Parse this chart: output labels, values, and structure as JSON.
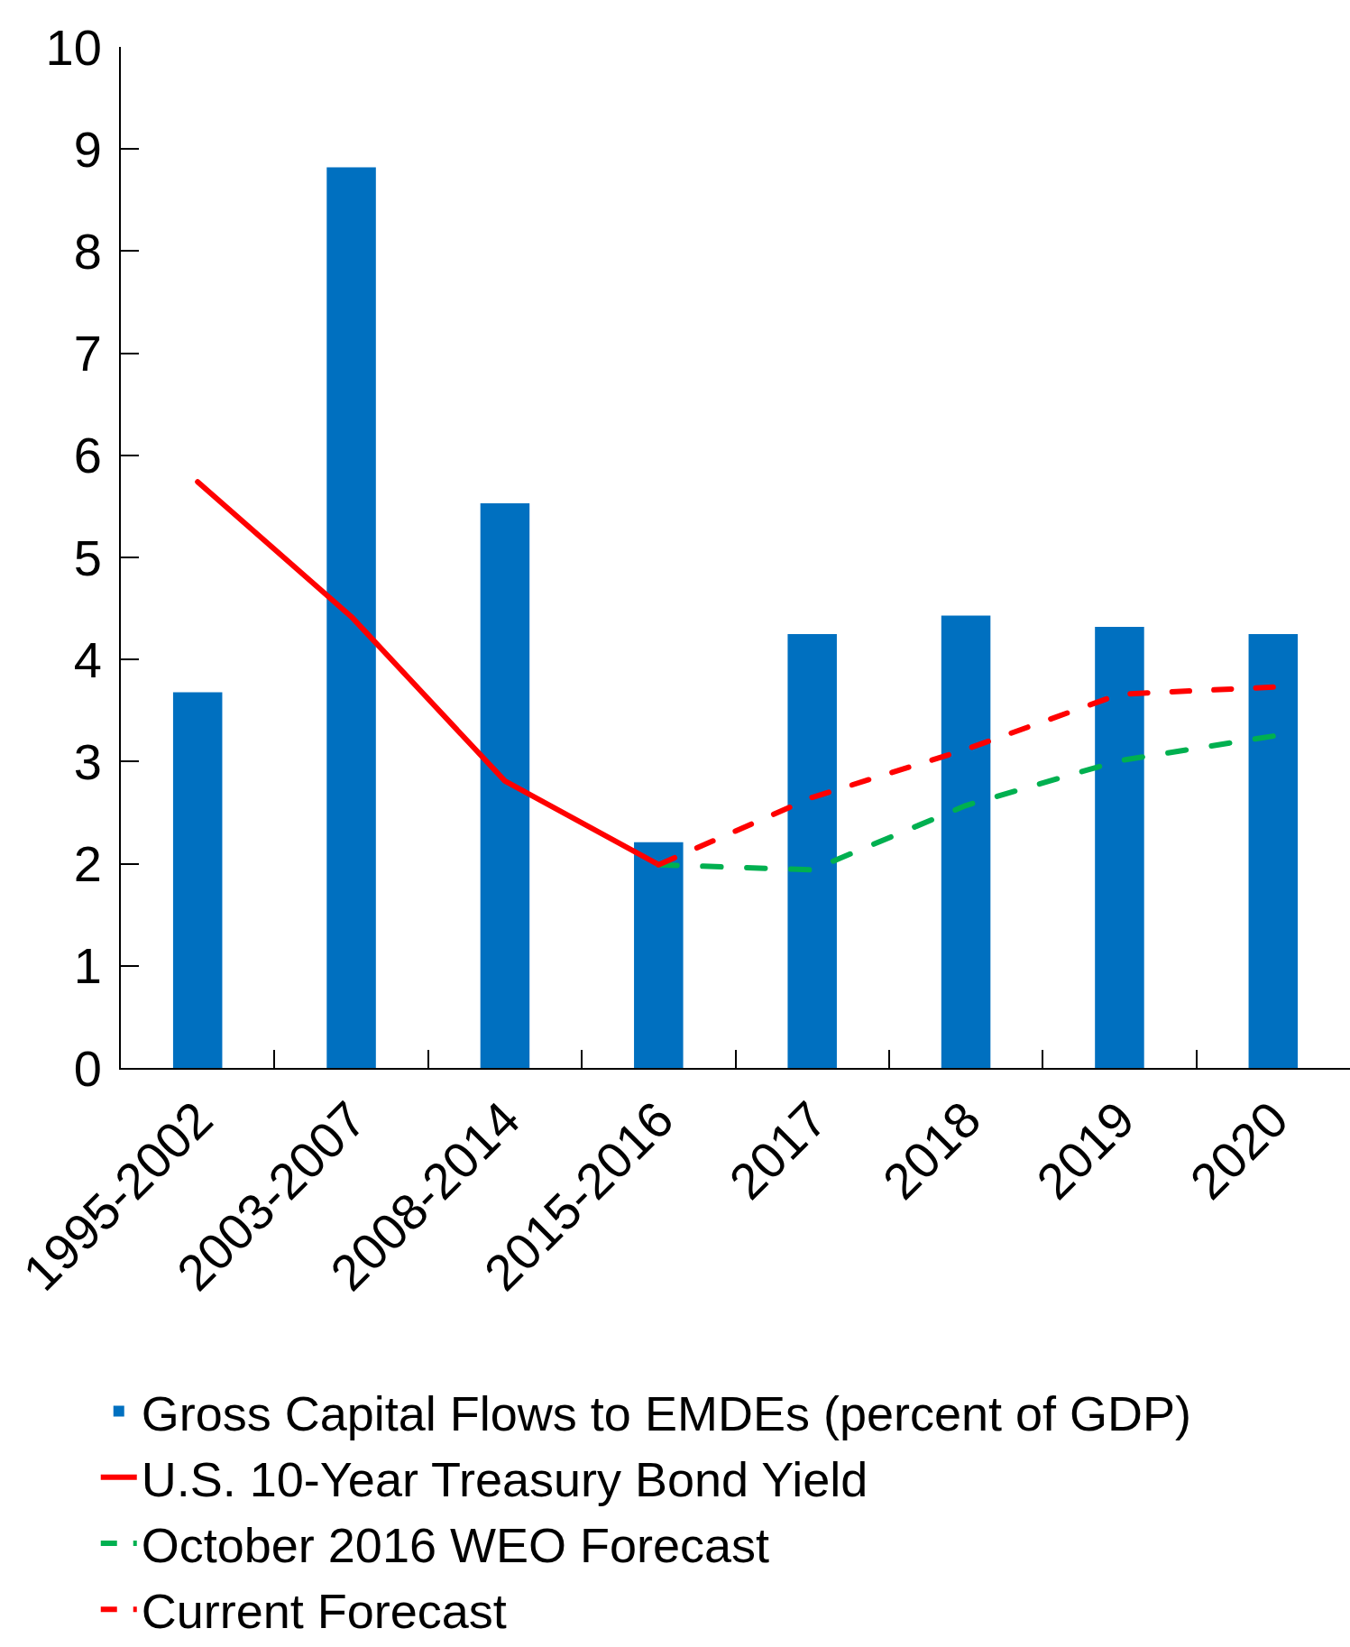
{
  "chart_data": {
    "type": "bar",
    "categories": [
      "1995-2002",
      "2003-2007",
      "2008-2014",
      "2015-2016",
      "2017",
      "2018",
      "2019",
      "2020"
    ],
    "series": [
      {
        "name": "Gross Capital Flows to EMDEs (percent of GDP)",
        "color": "#0070c0",
        "values": [
          3.68,
          8.82,
          5.53,
          2.21,
          4.25,
          4.43,
          4.32,
          4.25
        ]
      },
      {
        "name": "U.S. 10-Year Treasury Bond Yield",
        "type": "line",
        "line_style": "solid",
        "color": "#ff0000",
        "values": [
          5.74,
          4.42,
          2.81,
          1.99,
          null,
          null,
          null,
          null
        ]
      },
      {
        "name": "October 2016 WEO Forecast",
        "type": "line",
        "line_style": "dashed",
        "color": "#00b050",
        "values": [
          null,
          null,
          null,
          1.99,
          1.94,
          2.57,
          3.01,
          3.25
        ]
      },
      {
        "name": "Current Forecast",
        "type": "line",
        "line_style": "dashed",
        "color": "#ff0000",
        "values": [
          null,
          null,
          null,
          1.99,
          2.65,
          3.12,
          3.66,
          3.73
        ]
      }
    ],
    "ylim": [
      0,
      10
    ],
    "yticks": [
      0,
      1,
      2,
      3,
      4,
      5,
      6,
      7,
      8,
      9,
      10
    ],
    "grid": false,
    "legend": "bottom"
  }
}
